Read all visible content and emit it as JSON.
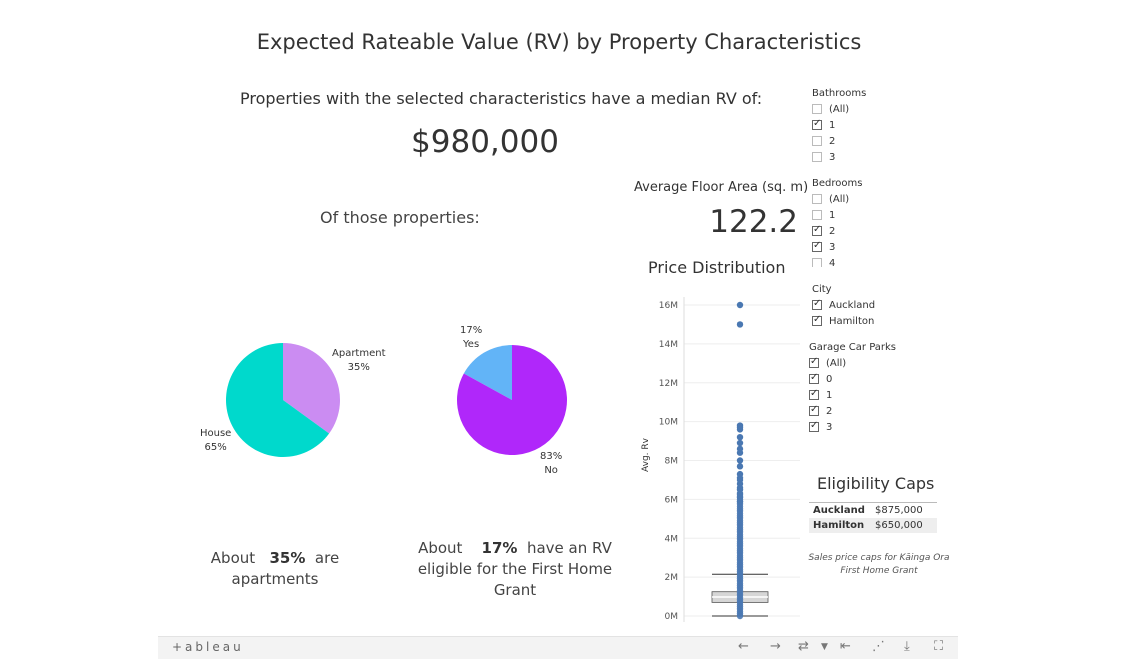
{
  "title": "Expected Rateable Value (RV) by Property Characteristics",
  "median_label": "Properties with the selected characteristics have a median RV of:",
  "median_value": "$980,000",
  "of_those": "Of those properties:",
  "floor_area": {
    "label": "Average Floor Area (sq. m)",
    "value": "122.2"
  },
  "captions": {
    "apartments": {
      "pre": "About",
      "pct": "35%",
      "post": "are",
      "line2": "apartments"
    },
    "grant": {
      "pre": "About",
      "pct": "17%",
      "post": "have an RV",
      "line2": "eligible for the First Home",
      "line3": "Grant"
    }
  },
  "filters": {
    "bathrooms": {
      "title": "Bathrooms",
      "items": [
        {
          "label": "(All)",
          "checked": false
        },
        {
          "label": "1",
          "checked": true
        },
        {
          "label": "2",
          "checked": false
        },
        {
          "label": "3",
          "checked": false
        }
      ]
    },
    "bedrooms": {
      "title": "Bedrooms",
      "items": [
        {
          "label": "(All)",
          "checked": false
        },
        {
          "label": "1",
          "checked": false
        },
        {
          "label": "2",
          "checked": true
        },
        {
          "label": "3",
          "checked": true
        },
        {
          "label": "4",
          "checked": false
        }
      ]
    },
    "city": {
      "title": "City",
      "items": [
        {
          "label": "Auckland",
          "checked": true
        },
        {
          "label": "Hamilton",
          "checked": true
        }
      ]
    },
    "garage": {
      "title": "Garage Car Parks",
      "items": [
        {
          "label": "(All)",
          "checked": true
        },
        {
          "label": "0",
          "checked": true
        },
        {
          "label": "1",
          "checked": true
        },
        {
          "label": "2",
          "checked": true
        },
        {
          "label": "3",
          "checked": true
        }
      ]
    }
  },
  "eligibility": {
    "title": "Eligibility Caps",
    "rows": [
      {
        "city": "Auckland",
        "cap": "$875,000"
      },
      {
        "city": "Hamilton",
        "cap": "$650,000"
      }
    ],
    "note": "Sales price caps for Kāinga Ora First Home Grant"
  },
  "toolbar": {
    "logo": "+ableau"
  },
  "colors": {
    "house": "#00d9cc",
    "apartment": "#cb8cf2",
    "yes": "#62b4f7",
    "no": "#b027fa",
    "dots": "#4a78b2"
  },
  "chart_data": [
    {
      "type": "pie",
      "name": "property-type",
      "slices": [
        {
          "label": "Apartment",
          "value": 35,
          "display": "35%"
        },
        {
          "label": "House",
          "value": 65,
          "display": "65%"
        }
      ]
    },
    {
      "type": "pie",
      "name": "grant-eligibility",
      "slices": [
        {
          "label": "Yes",
          "value": 17,
          "display": "17%"
        },
        {
          "label": "No",
          "value": 83,
          "display": "83%"
        }
      ]
    },
    {
      "type": "scatter",
      "title": "Price Distribution",
      "ylabel": "Avg. Rv",
      "ylim": [
        0,
        16.5
      ],
      "yticks": [
        0,
        2,
        4,
        6,
        8,
        10,
        12,
        14,
        16
      ],
      "ytick_labels": [
        "0M",
        "2M",
        "4M",
        "6M",
        "8M",
        "10M",
        "12M",
        "14M",
        "16M"
      ],
      "box": {
        "whisker_low": 0.0,
        "q1": 0.7,
        "median": 0.98,
        "q3": 1.25,
        "whisker_high": 2.15
      },
      "outliers": [
        16.0,
        15.0,
        9.8,
        9.7,
        9.6,
        9.2,
        8.9,
        8.6,
        8.4,
        8.0,
        7.7,
        7.3,
        7.1,
        7.0,
        6.8,
        6.6,
        6.5,
        6.3,
        6.1,
        5.9
      ],
      "dense_range": [
        0.0,
        6.3
      ]
    }
  ]
}
